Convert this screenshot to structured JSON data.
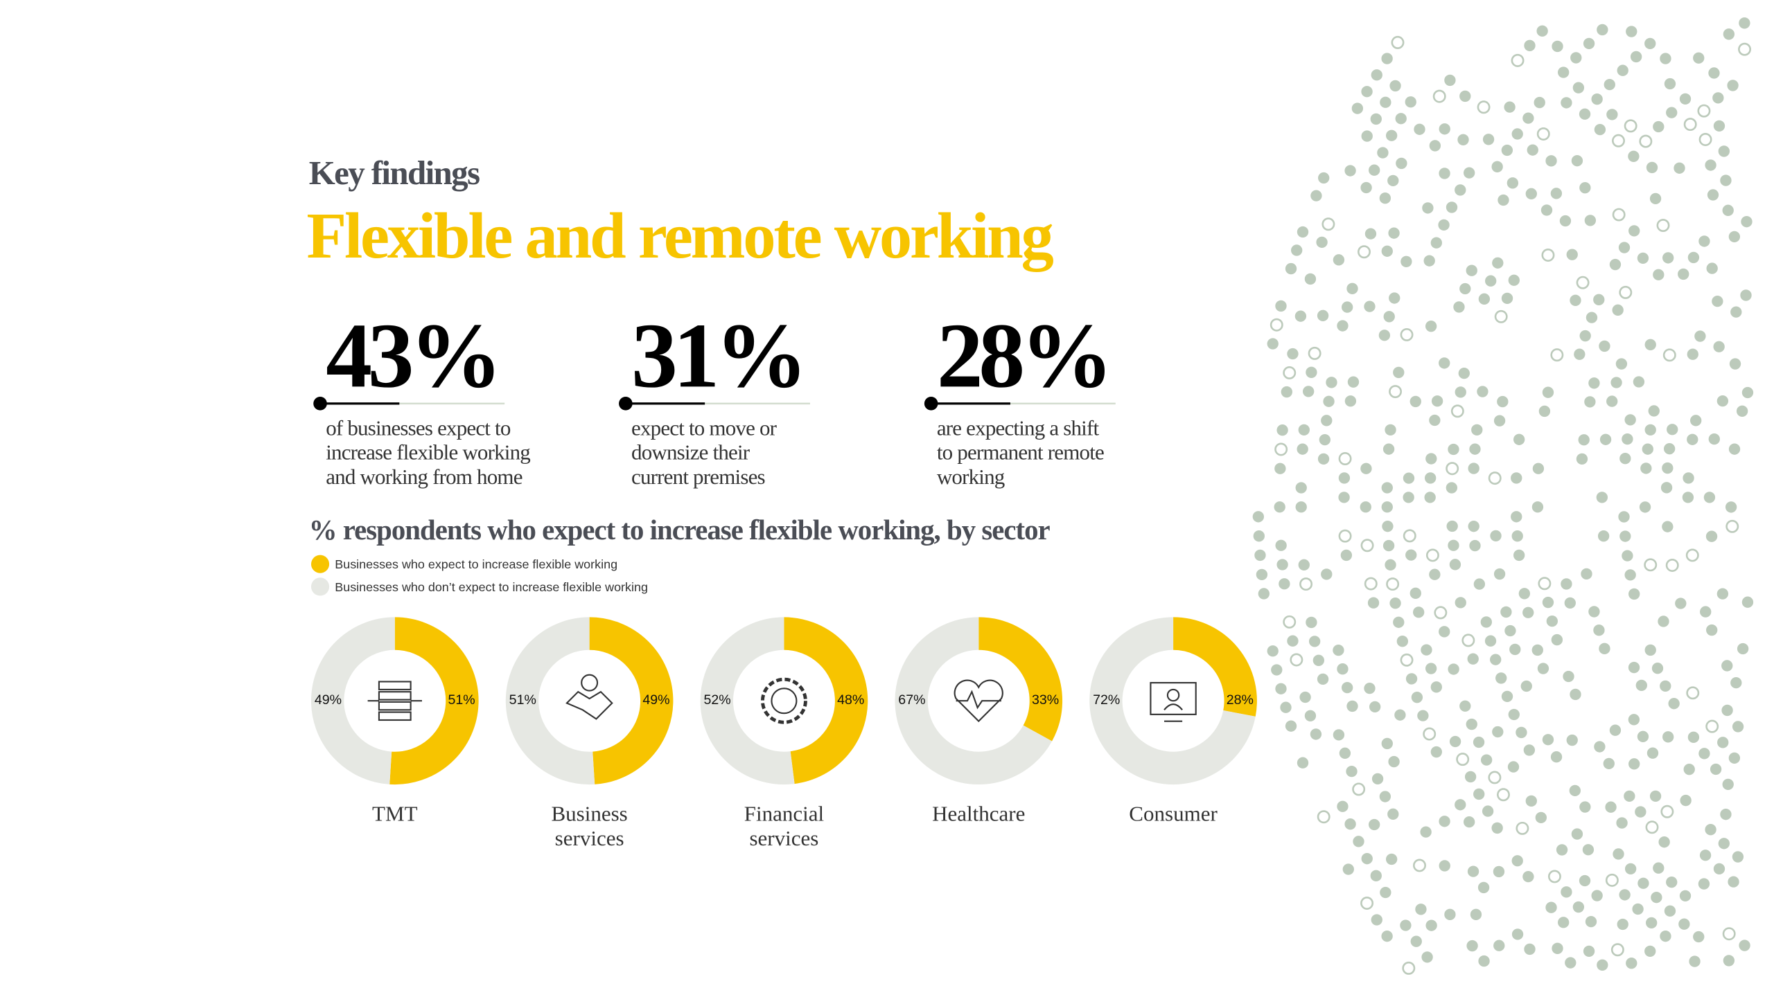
{
  "header": {
    "kicker": "Key findings",
    "title": "Flexible and remote working"
  },
  "stats": [
    {
      "figure": "43%",
      "text": [
        "of businesses expect to",
        "increase flexible working",
        "and working from home"
      ]
    },
    {
      "figure": "31%",
      "text": [
        "expect to move or",
        "downsize their",
        "current premises"
      ]
    },
    {
      "figure": "28%",
      "text": [
        "are expecting a shift",
        "to permanent remote",
        "working"
      ]
    }
  ],
  "section_title": "% respondents who expect to increase flexible working, by sector",
  "legend": {
    "labels": [
      "Businesses who expect to increase flexible working",
      "Businesses who don’t expect to increase flexible working"
    ],
    "colors": [
      "#f7c400",
      "#e6e8e3"
    ]
  },
  "chart_data": [
    {
      "type": "donut",
      "title": [
        "TMT"
      ],
      "values": [
        51,
        49
      ],
      "value_labels": [
        "51%",
        "49%"
      ],
      "colors": [
        "#f7c400",
        "#e6e8e3"
      ]
    },
    {
      "type": "donut",
      "title": [
        "Business",
        "services"
      ],
      "values": [
        49,
        51
      ],
      "value_labels": [
        "49%",
        "51%"
      ],
      "colors": [
        "#f7c400",
        "#e6e8e3"
      ]
    },
    {
      "type": "donut",
      "title": [
        "Financial",
        "services"
      ],
      "values": [
        48,
        52
      ],
      "value_labels": [
        "48%",
        "52%"
      ],
      "colors": [
        "#f7c400",
        "#e6e8e3"
      ]
    },
    {
      "type": "donut",
      "title": [
        "Healthcare"
      ],
      "values": [
        33,
        67
      ],
      "value_labels": [
        "33%",
        "67%"
      ],
      "colors": [
        "#f7c400",
        "#e6e8e3"
      ]
    },
    {
      "type": "donut",
      "title": [
        "Consumer"
      ],
      "values": [
        28,
        72
      ],
      "value_labels": [
        "28%",
        "72%"
      ],
      "colors": [
        "#f7c400",
        "#e6e8e3"
      ]
    }
  ]
}
